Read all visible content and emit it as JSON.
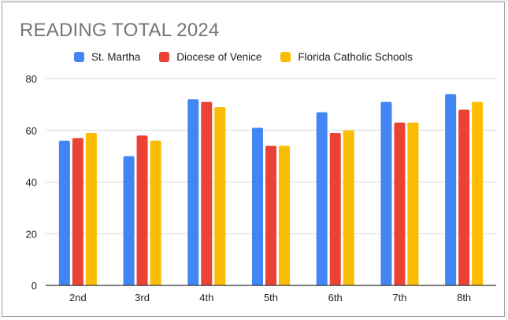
{
  "chart_data": {
    "type": "bar",
    "title": "READING TOTAL 2024",
    "xlabel": "",
    "ylabel": "",
    "categories": [
      "2nd",
      "3rd",
      "4th",
      "5th",
      "6th",
      "7th",
      "8th"
    ],
    "series": [
      {
        "name": "St. Martha",
        "color": "#4285f4",
        "values": [
          56,
          50,
          72,
          61,
          67,
          71,
          74
        ]
      },
      {
        "name": "Diocese of Venice",
        "color": "#ea4335",
        "values": [
          57,
          58,
          71,
          54,
          59,
          63,
          68
        ]
      },
      {
        "name": "Florida Catholic Schools",
        "color": "#fbbc04",
        "values": [
          59,
          56,
          69,
          54,
          60,
          63,
          71
        ]
      }
    ],
    "yticks": [
      "0",
      "20",
      "40",
      "60",
      "80"
    ],
    "ylim": [
      0,
      80
    ],
    "grid": true,
    "legend_position": "top"
  }
}
